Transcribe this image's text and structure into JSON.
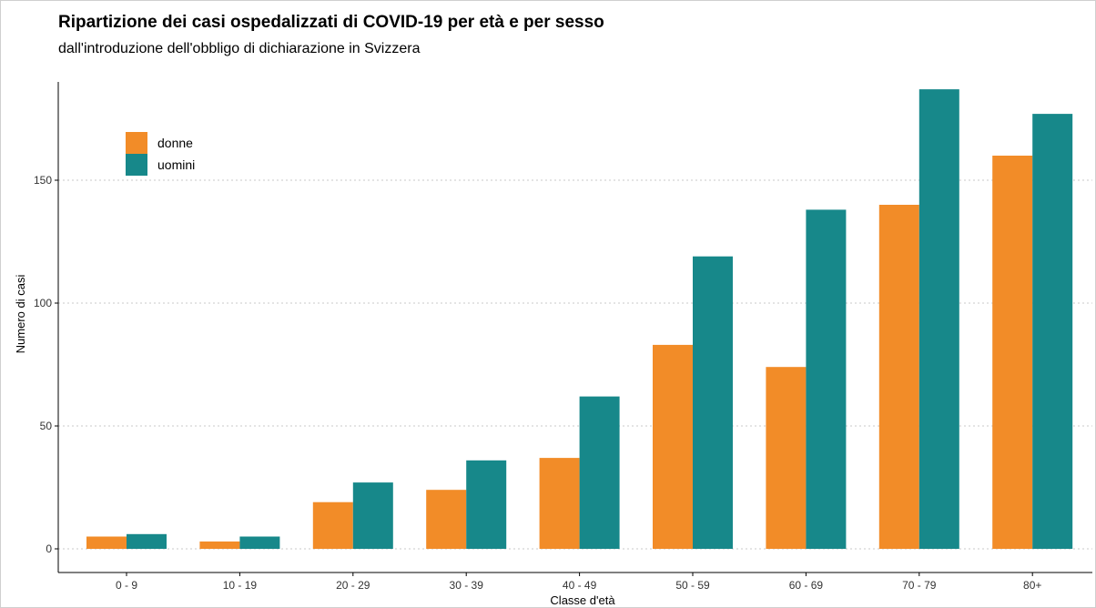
{
  "chart_data": {
    "type": "bar",
    "title": "Ripartizione dei casi ospedalizzati di COVID-19 per età e per sesso",
    "subtitle": "dall'introduzione dell'obbligo di dichiarazione in Svizzera",
    "xlabel": "Classe d'età",
    "ylabel": "Numero di casi",
    "categories": [
      "0 - 9",
      "10 - 19",
      "20 - 29",
      "30 - 39",
      "40 - 49",
      "50 - 59",
      "60 - 69",
      "70 - 79",
      "80+"
    ],
    "series": [
      {
        "name": "donne",
        "color": "#F28C28",
        "values": [
          5,
          3,
          19,
          24,
          37,
          83,
          74,
          140,
          160
        ]
      },
      {
        "name": "uomini",
        "color": "#17888A",
        "values": [
          6,
          5,
          27,
          36,
          62,
          119,
          138,
          187,
          177
        ]
      }
    ],
    "ylim": [
      0,
      190
    ],
    "yticks": [
      0,
      50,
      100,
      150
    ],
    "grid": "horizontal dotted",
    "legend_position": "top-left"
  }
}
